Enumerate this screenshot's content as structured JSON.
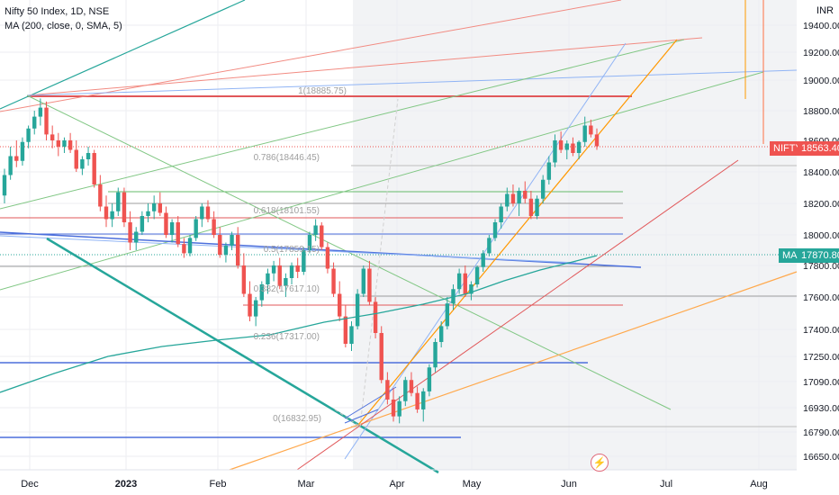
{
  "header": {
    "title": "Nifty 50 Index, 1D, NSE",
    "indicator": "MA (200, close, 0, SMA, 5)"
  },
  "axis": {
    "currency": "INR",
    "price_ticks": [
      "19400.00",
      "19200.00",
      "19000.00",
      "18800.00",
      "18600.00",
      "18400.00",
      "18200.00",
      "18000.00",
      "17800.00",
      "17600.00",
      "17400.00",
      "17250.00",
      "17090.00",
      "16930.00",
      "16790.00",
      "16650.00"
    ],
    "time_ticks": [
      "Dec",
      "2023",
      "Feb",
      "Mar",
      "Apr",
      "May",
      "Jun",
      "Jul",
      "Aug"
    ]
  },
  "labels": {
    "nifty_symbol": "NIFTY",
    "nifty_price": "18563.40",
    "ma_symbol": "MA",
    "ma_price": "17870.80"
  },
  "colors": {
    "up": "#26a69a",
    "down": "#ef5350",
    "ma": "#26a69a",
    "fib_red": "#e15759",
    "fib_gray": "#9e9e9e",
    "fib_blue": "#4c6fdc",
    "fib_green": "#4caf50"
  },
  "fib_labels": [
    "1(18885.75)",
    "0.786(18446.45)",
    "0.618(18101.55)",
    "0.5(17859.15)",
    "0.382(17617.10)",
    "0.236(17317.00)",
    "0(16832.95)"
  ],
  "chart_data": {
    "type": "candlestick",
    "title": "Nifty 50 Index, 1D, NSE",
    "x_ticks": [
      "Dec",
      "2023",
      "Feb",
      "Mar",
      "Apr",
      "May",
      "Jun",
      "Jul",
      "Aug"
    ],
    "y_ticks": [
      19400,
      19200,
      19000,
      18800,
      18600,
      18400,
      18200,
      18000,
      17800,
      17600,
      17400,
      17250,
      17090,
      16930,
      16790,
      16650
    ],
    "last_price": 18563.4,
    "ma_value": 17870.8,
    "fibonacci_levels": [
      {
        "ratio": 1,
        "price": 18885.75
      },
      {
        "ratio": 0.786,
        "price": 18446.45
      },
      {
        "ratio": 0.618,
        "price": 18101.55
      },
      {
        "ratio": 0.5,
        "price": 17859.15
      },
      {
        "ratio": 0.382,
        "price": 17617.1
      },
      {
        "ratio": 0.236,
        "price": 17317.0
      },
      {
        "ratio": 0,
        "price": 16832.95
      }
    ],
    "ohlc_approx": [
      [
        18250,
        18420,
        18200,
        18380
      ],
      [
        18380,
        18560,
        18350,
        18500
      ],
      [
        18500,
        18600,
        18430,
        18470
      ],
      [
        18470,
        18620,
        18440,
        18590
      ],
      [
        18590,
        18700,
        18550,
        18680
      ],
      [
        18680,
        18800,
        18640,
        18760
      ],
      [
        18760,
        18880,
        18700,
        18820
      ],
      [
        18820,
        18860,
        18600,
        18640
      ],
      [
        18640,
        18700,
        18550,
        18600
      ],
      [
        18600,
        18650,
        18500,
        18560
      ],
      [
        18560,
        18620,
        18520,
        18600
      ],
      [
        18600,
        18650,
        18520,
        18540
      ],
      [
        18540,
        18600,
        18400,
        18420
      ],
      [
        18420,
        18500,
        18380,
        18480
      ],
      [
        18480,
        18560,
        18440,
        18520
      ],
      [
        18520,
        18540,
        18300,
        18320
      ],
      [
        18320,
        18380,
        18150,
        18180
      ],
      [
        18180,
        18250,
        18050,
        18100
      ],
      [
        18100,
        18200,
        18050,
        18150
      ],
      [
        18150,
        18300,
        18120,
        18270
      ],
      [
        18270,
        18300,
        18050,
        18080
      ],
      [
        18080,
        18150,
        17900,
        17950
      ],
      [
        17950,
        18050,
        17900,
        18020
      ],
      [
        18020,
        18150,
        18000,
        18120
      ],
      [
        18120,
        18200,
        18080,
        18150
      ],
      [
        18150,
        18250,
        18100,
        18200
      ],
      [
        18200,
        18270,
        18120,
        18140
      ],
      [
        18140,
        18180,
        17980,
        18000
      ],
      [
        18000,
        18100,
        17950,
        18080
      ],
      [
        18080,
        18120,
        17920,
        17940
      ],
      [
        17940,
        17980,
        17850,
        17880
      ],
      [
        17880,
        18000,
        17860,
        17980
      ],
      [
        17980,
        18120,
        17960,
        18100
      ],
      [
        18100,
        18200,
        18050,
        18180
      ],
      [
        18180,
        18220,
        18080,
        18100
      ],
      [
        18100,
        18150,
        17980,
        18000
      ],
      [
        18000,
        18050,
        17850,
        17870
      ],
      [
        17870,
        17950,
        17820,
        17930
      ],
      [
        17930,
        18020,
        17900,
        18000
      ],
      [
        18000,
        18050,
        17780,
        17800
      ],
      [
        17800,
        17880,
        17600,
        17620
      ],
      [
        17620,
        17700,
        17450,
        17480
      ],
      [
        17480,
        17600,
        17420,
        17580
      ],
      [
        17580,
        17700,
        17540,
        17680
      ],
      [
        17680,
        17780,
        17620,
        17750
      ],
      [
        17750,
        17830,
        17700,
        17800
      ],
      [
        17800,
        17850,
        17650,
        17670
      ],
      [
        17670,
        17750,
        17600,
        17720
      ],
      [
        17720,
        17820,
        17680,
        17800
      ],
      [
        17800,
        17850,
        17720,
        17760
      ],
      [
        17760,
        17920,
        17740,
        17900
      ],
      [
        17900,
        18020,
        17880,
        18000
      ],
      [
        18000,
        18100,
        17960,
        18060
      ],
      [
        18060,
        18080,
        17900,
        17920
      ],
      [
        17920,
        17950,
        17750,
        17780
      ],
      [
        17780,
        17820,
        17600,
        17620
      ],
      [
        17620,
        17700,
        17450,
        17480
      ],
      [
        17480,
        17550,
        17300,
        17320
      ],
      [
        17320,
        17450,
        17280,
        17420
      ],
      [
        17420,
        17650,
        17400,
        17620
      ],
      [
        17620,
        17800,
        17600,
        17780
      ],
      [
        17780,
        17830,
        17550,
        17570
      ],
      [
        17570,
        17600,
        17350,
        17380
      ],
      [
        17380,
        17420,
        17080,
        17100
      ],
      [
        17100,
        17150,
        16950,
        16980
      ],
      [
        16980,
        17050,
        16850,
        16880
      ],
      [
        16880,
        17000,
        16840,
        16970
      ],
      [
        16970,
        17120,
        16940,
        17100
      ],
      [
        17100,
        17150,
        17000,
        17020
      ],
      [
        17020,
        17060,
        16900,
        16920
      ],
      [
        16920,
        17050,
        16850,
        17030
      ],
      [
        17030,
        17200,
        17000,
        17180
      ],
      [
        17180,
        17350,
        17150,
        17330
      ],
      [
        17330,
        17450,
        17300,
        17420
      ],
      [
        17420,
        17600,
        17400,
        17560
      ],
      [
        17560,
        17680,
        17520,
        17650
      ],
      [
        17650,
        17780,
        17620,
        17750
      ],
      [
        17750,
        17800,
        17600,
        17620
      ],
      [
        17620,
        17700,
        17580,
        17680
      ],
      [
        17680,
        17800,
        17660,
        17790
      ],
      [
        17790,
        17900,
        17760,
        17880
      ],
      [
        17880,
        18000,
        17860,
        17980
      ],
      [
        17980,
        18100,
        17960,
        18080
      ],
      [
        18080,
        18200,
        18040,
        18180
      ],
      [
        18180,
        18300,
        18150,
        18260
      ],
      [
        18260,
        18320,
        18180,
        18200
      ],
      [
        18200,
        18300,
        18120,
        18280
      ],
      [
        18280,
        18340,
        18200,
        18230
      ],
      [
        18230,
        18280,
        18100,
        18120
      ],
      [
        18120,
        18250,
        18100,
        18230
      ],
      [
        18230,
        18380,
        18200,
        18350
      ],
      [
        18350,
        18500,
        18320,
        18460
      ],
      [
        18460,
        18640,
        18430,
        18600
      ],
      [
        18600,
        18660,
        18520,
        18540
      ],
      [
        18540,
        18600,
        18480,
        18580
      ],
      [
        18580,
        18620,
        18500,
        18520
      ],
      [
        18520,
        18600,
        18480,
        18590
      ],
      [
        18590,
        18760,
        18560,
        18700
      ],
      [
        18700,
        18740,
        18620,
        18640
      ],
      [
        18640,
        18680,
        18540,
        18563
      ]
    ]
  }
}
